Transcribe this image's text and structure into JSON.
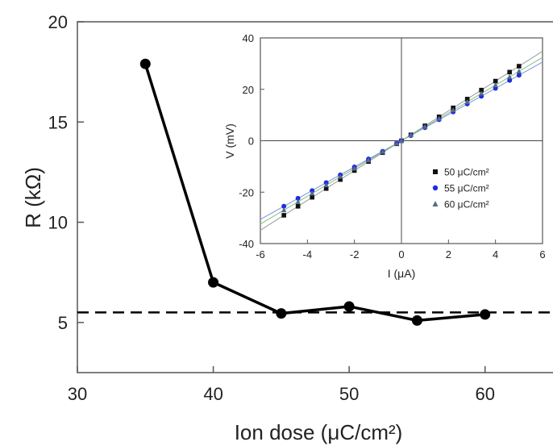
{
  "chart_data": [
    {
      "type": "line",
      "xlabel": "Ion dose (μC/cm²)",
      "ylabel": "R (kΩ)",
      "xlim": [
        30,
        65
      ],
      "ylim": [
        2.5,
        20
      ],
      "xticks": [
        30,
        40,
        50,
        60
      ],
      "yticks": [
        5,
        10,
        15,
        20
      ],
      "x": [
        35,
        40,
        45,
        50,
        55,
        60
      ],
      "series": [
        {
          "values": [
            17.9,
            7.0,
            5.45,
            5.8,
            5.1,
            5.4
          ]
        }
      ],
      "reference_line": {
        "y": 5.5,
        "style": "dashed"
      },
      "colors": {
        "line": "#000000",
        "reference": "#000000"
      }
    },
    {
      "type": "scatter",
      "xlabel": "I (μA)",
      "ylabel": "V (mV)",
      "xlim": [
        -6,
        6
      ],
      "ylim": [
        -40,
        40
      ],
      "xticks": [
        -6,
        -4,
        -2,
        0,
        2,
        4,
        6
      ],
      "yticks": [
        -40,
        -20,
        0,
        20,
        40
      ],
      "x": [
        -5,
        -4.4,
        -3.8,
        -3.2,
        -2.6,
        -2.0,
        -1.4,
        -0.8,
        -0.2,
        0.0,
        0.4,
        1.0,
        1.6,
        2.2,
        2.8,
        3.4,
        4.0,
        4.6,
        5.0
      ],
      "series": [
        {
          "name": "50 μC/cm²",
          "marker": "square",
          "color": "#111111",
          "values": [
            -29,
            -25.5,
            -22,
            -18.6,
            -15.1,
            -11.6,
            -8.1,
            -4.6,
            -1.2,
            0,
            2.3,
            5.8,
            9.3,
            12.8,
            16.2,
            19.7,
            23.2,
            26.7,
            29
          ]
        },
        {
          "name": "55 μC/cm²",
          "marker": "circle",
          "color": "#1f2de0",
          "values": [
            -25.5,
            -22.4,
            -19.4,
            -16.3,
            -13.3,
            -10.2,
            -7.1,
            -4.1,
            -1.0,
            0,
            2.0,
            5.1,
            8.2,
            11.2,
            14.3,
            17.3,
            20.4,
            23.5,
            25.5
          ]
        },
        {
          "name": "60 μC/cm²",
          "marker": "triangle",
          "color": "#556b8a",
          "values": [
            -27,
            -23.8,
            -20.5,
            -17.3,
            -14.0,
            -10.8,
            -7.6,
            -4.3,
            -1.1,
            0,
            2.2,
            5.4,
            8.6,
            11.9,
            15.1,
            18.4,
            21.6,
            24.8,
            27
          ]
        }
      ],
      "fit_lines": [
        {
          "slope": 5.8,
          "color": "#9a9a9a"
        },
        {
          "slope": 5.1,
          "color": "#7f8fe0"
        },
        {
          "slope": 5.4,
          "color": "#7fc27f"
        }
      ],
      "legend_position": "right"
    }
  ]
}
